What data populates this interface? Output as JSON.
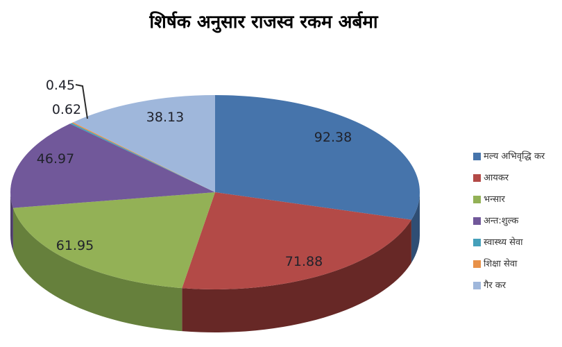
{
  "title": "शिर्षक अनुसार राजस्व रकम अर्बमा",
  "chart_data": {
    "type": "pie",
    "style": "3d-pie",
    "title": "शिर्षक अनुसार राजस्व रकम अर्बमा",
    "categories": [
      "मल्य अभिवृद्धि कर",
      "आयकर",
      "भन्सार",
      "अन्त:शुल्क",
      "स्वास्थ्य सेवा",
      "शिक्षा सेवा",
      "गैर कर"
    ],
    "values": [
      92.38,
      71.88,
      61.95,
      46.97,
      0.62,
      0.45,
      38.13
    ],
    "labels": [
      "92.38",
      "71.88",
      "61.95",
      "46.97",
      "0.62",
      "0.45",
      "38.13"
    ],
    "colors": [
      "#4674AB",
      "#B34A47",
      "#93B156",
      "#71589A",
      "#45A0BA",
      "#E89148",
      "#9FB7DB"
    ],
    "side_colors": [
      "#2F4E74",
      "#672826",
      "#66803C",
      "#4E3D6B",
      "#2E6E7F",
      "#A56430",
      "#6A7A92"
    ],
    "label_color": "#20222b",
    "leader_line_color": "#2a2a2a",
    "legend_position": "right",
    "legend_text_color": "#333333",
    "background": "#ffffff",
    "start_angle_deg": 0,
    "direction": "clockwise"
  }
}
